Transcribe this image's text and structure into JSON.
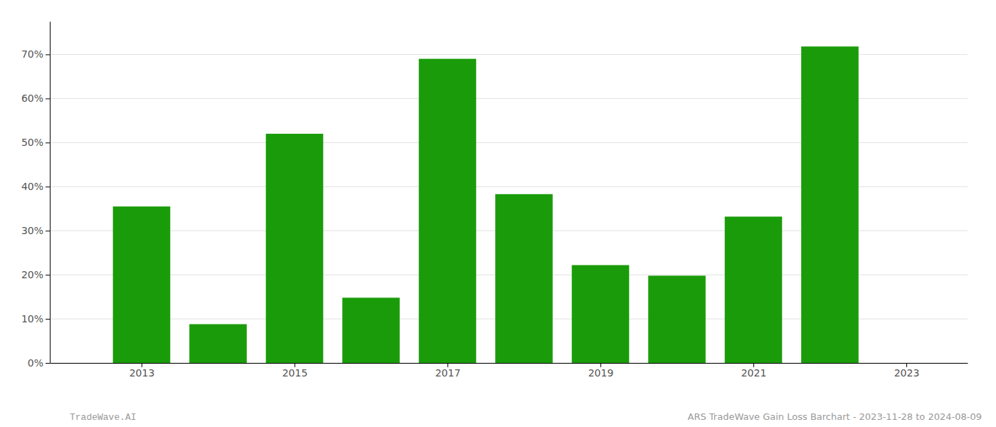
{
  "chart_data": {
    "type": "bar",
    "x": [
      2013,
      2014,
      2015,
      2016,
      2017,
      2018,
      2019,
      2020,
      2021,
      2022
    ],
    "values": [
      0.355,
      0.088,
      0.52,
      0.148,
      0.69,
      0.383,
      0.222,
      0.198,
      0.332,
      0.718
    ],
    "color": "#1a9c0a",
    "xlim": [
      2011.8,
      2023.8
    ],
    "xticks": [
      2013,
      2015,
      2017,
      2019,
      2021,
      2023
    ],
    "ylim": [
      0.0,
      0.775
    ],
    "yticks": [
      {
        "value": 0.0,
        "label": "0%"
      },
      {
        "value": 0.1,
        "label": "10%"
      },
      {
        "value": 0.2,
        "label": "20%"
      },
      {
        "value": 0.3,
        "label": "30%"
      },
      {
        "value": 0.4,
        "label": "40%"
      },
      {
        "value": 0.5,
        "label": "50%"
      },
      {
        "value": 0.6,
        "label": "60%"
      },
      {
        "value": 0.7,
        "label": "70%"
      }
    ],
    "grid": true,
    "annotations": [
      "TradeWave.AI",
      "ARS TradeWave Gain Loss Barchart - 2023-11-28 to 2024-08-09"
    ]
  }
}
